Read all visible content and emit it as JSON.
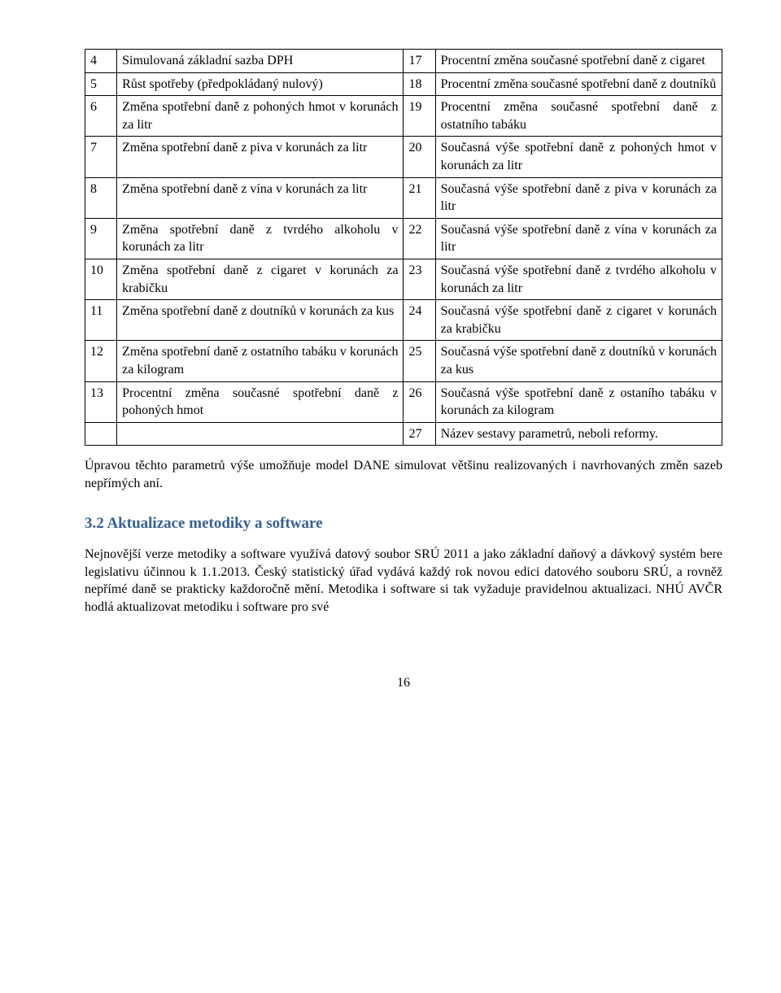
{
  "table": {
    "rows": [
      {
        "a": "4",
        "b": "Simulovaná základní sazba DPH",
        "c": "17",
        "d": "Procentní změna současné spotřební daně z cigaret"
      },
      {
        "a": "5",
        "b": "Růst spotřeby (předpokládaný nulový)",
        "c": "18",
        "d": "Procentní změna současné spotřební daně z doutníků"
      },
      {
        "a": "6",
        "b": "Změna spotřební daně z pohoných hmot v korunách za litr",
        "c": "19",
        "d": "Procentní změna současné spotřební daně z ostatního tabáku"
      },
      {
        "a": "7",
        "b": "Změna spotřební daně z piva v korunách za litr",
        "c": "20",
        "d": "Současná výše spotřební daně z pohoných hmot v korunách za litr"
      },
      {
        "a": "8",
        "b": "Změna spotřební daně z vína v korunách za litr",
        "c": "21",
        "d": "Současná výše spotřební daně z piva v korunách za litr"
      },
      {
        "a": "9",
        "b": "Změna spotřební daně z tvrdého alkoholu v korunách za litr",
        "c": "22",
        "d": "Současná výše spotřební daně z vína v korunách za litr"
      },
      {
        "a": "10",
        "b": "Změna spotřební daně z cigaret v korunách za krabičku",
        "c": "23",
        "d": "Současná výše spotřební daně z tvrdého alkoholu v korunách za litr"
      },
      {
        "a": "11",
        "b": "Změna spotřební daně z doutníků v korunách za kus",
        "c": "24",
        "d": "Současná výše spotřební daně z cigaret v korunách za krabičku"
      },
      {
        "a": "12",
        "b": "Změna spotřební daně z ostatního tabáku v korunách za kilogram",
        "c": "25",
        "d": "Současná výše spotřební daně z doutníků v korunách za kus"
      },
      {
        "a": "13",
        "b": "Procentní změna současné spotřební daně z pohoných hmot",
        "c": "26",
        "d": "Současná výše spotřební daně z ostaního tabáku v korunách za kilogram"
      },
      {
        "a": "",
        "b": "",
        "c": "27",
        "d": "Název sestavy parametrů, neboli reformy."
      }
    ]
  },
  "paragraph1": "Úpravou těchto parametrů výše umožňuje model DANE simulovat většinu realizovaných i navrhovaných změn sazeb nepřímých aní.",
  "heading": "3.2  Aktualizace metodiky a software",
  "paragraph2": "Nejnovější verze metodiky a software využívá datový soubor SRÚ 2011 a jako základní daňový a dávkový systém bere legislativu účinnou k 1.1.2013. Český statistický úřad vydává každý rok novou edici datového souboru SRÚ, a rovněž nepřímé daně se prakticky každoročně mění. Metodika i software si tak vyžaduje pravidelnou aktualizaci. NHÚ AVČR hodlá aktualizovat metodiku i software pro své",
  "pageNumber": "16",
  "colors": {
    "heading": "#365f91",
    "text": "#000000",
    "background": "#ffffff",
    "border": "#000000"
  },
  "fonts": {
    "body_family": "Times New Roman",
    "body_size_pt": 12,
    "heading_size_pt": 14
  }
}
